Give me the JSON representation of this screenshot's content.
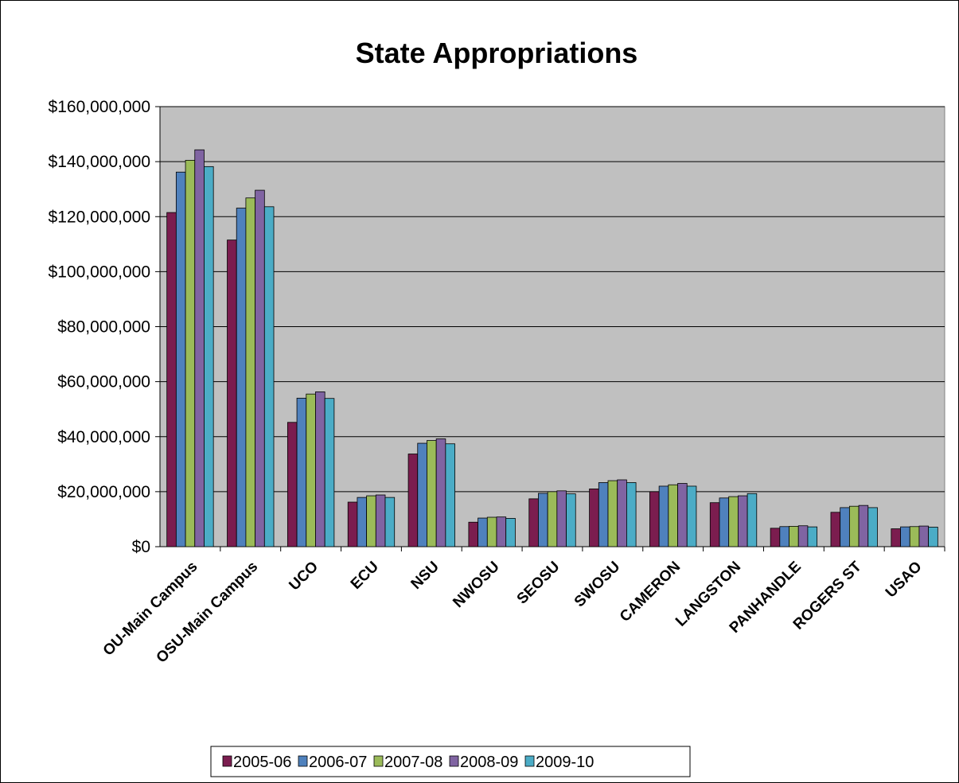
{
  "chart_data": {
    "type": "bar",
    "title": "State Appropriations",
    "xlabel": "",
    "ylabel": "",
    "ylim": [
      0,
      160000000
    ],
    "yticks": [
      0,
      20000000,
      40000000,
      60000000,
      80000000,
      100000000,
      120000000,
      140000000,
      160000000
    ],
    "ytick_labels": [
      "$0",
      "$20,000,000",
      "$40,000,000",
      "$60,000,000",
      "$80,000,000",
      "$100,000,000",
      "$120,000,000",
      "$140,000,000",
      "$160,000,000"
    ],
    "grid": true,
    "legend_position": "bottom",
    "plot_background": "#c0c0c0",
    "categories": [
      "OU-Main Campus",
      "OSU-Main Campus",
      "UCO",
      "ECU",
      "NSU",
      "NWOSU",
      "SEOSU",
      "SWOSU",
      "CAMERON",
      "LANGSTON",
      "PANHANDLE",
      "ROGERS ST",
      "USAO"
    ],
    "series": [
      {
        "name": "2005-06",
        "color": "#7b1d4f",
        "values": [
          121500000,
          111500000,
          45200000,
          16200000,
          33700000,
          8900000,
          17400000,
          21000000,
          20000000,
          16000000,
          6700000,
          12500000,
          6500000
        ]
      },
      {
        "name": "2006-07",
        "color": "#4f81bd",
        "values": [
          136200000,
          123100000,
          54000000,
          17900000,
          37600000,
          10400000,
          19400000,
          23300000,
          22000000,
          17700000,
          7300000,
          14200000,
          7200000
        ]
      },
      {
        "name": "2007-08",
        "color": "#9bbb59",
        "values": [
          140500000,
          126800000,
          55500000,
          18500000,
          38600000,
          10700000,
          20000000,
          24000000,
          22500000,
          18200000,
          7400000,
          14700000,
          7300000
        ]
      },
      {
        "name": "2008-09",
        "color": "#8064a2",
        "values": [
          144300000,
          129600000,
          56300000,
          18800000,
          39200000,
          10800000,
          20300000,
          24300000,
          23000000,
          18500000,
          7600000,
          15000000,
          7500000
        ]
      },
      {
        "name": "2009-10",
        "color": "#4bacc6",
        "values": [
          138200000,
          123600000,
          53900000,
          17900000,
          37400000,
          10300000,
          19200000,
          23300000,
          22000000,
          19300000,
          7200000,
          14200000,
          7100000
        ]
      }
    ]
  }
}
